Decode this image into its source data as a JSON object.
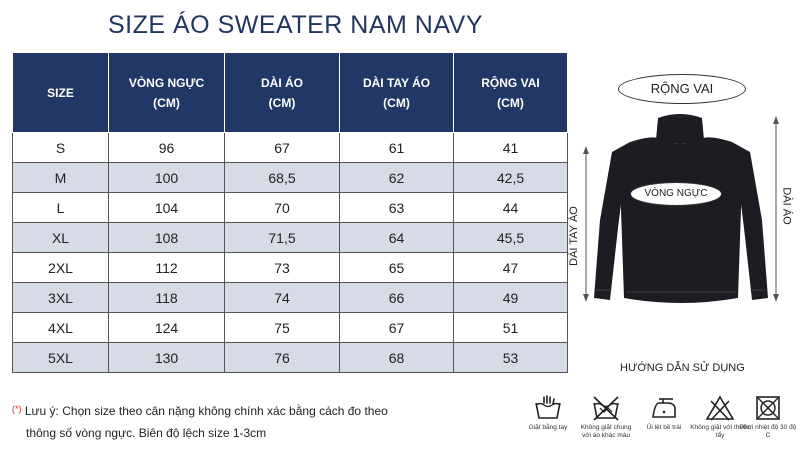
{
  "title": "SIZE ÁO SWEATER NAM NAVY",
  "table": {
    "headers": [
      [
        "SIZE",
        ""
      ],
      [
        "VÒNG NGỰC",
        "(CM)"
      ],
      [
        "DÀI ÁO",
        "(CM)"
      ],
      [
        "DÀI TAY ÁO",
        "(CM)"
      ],
      [
        "RỘNG VAI",
        "(CM)"
      ]
    ],
    "rows": [
      [
        "S",
        "96",
        "67",
        "61",
        "41"
      ],
      [
        "M",
        "100",
        "68,5",
        "62",
        "42,5"
      ],
      [
        "L",
        "104",
        "70",
        "63",
        "44"
      ],
      [
        "XL",
        "108",
        "71,5",
        "64",
        "45,5"
      ],
      [
        "2XL",
        "112",
        "73",
        "65",
        "47"
      ],
      [
        "3XL",
        "118",
        "74",
        "66",
        "49"
      ],
      [
        "4XL",
        "124",
        "75",
        "67",
        "51"
      ],
      [
        "5XL",
        "130",
        "76",
        "68",
        "53"
      ]
    ]
  },
  "diagram": {
    "rong_vai": "RỘNG VAI",
    "vong_nguc": "VÒNG NGỰC",
    "dai_tay_ao": "DÀI TAY ÁO",
    "dai_ao": "DÀI ÁO",
    "garment_color": "#1c1c22"
  },
  "note": {
    "marker": "(*)",
    "line1": "Lưu ý: Chọn size theo cân nặng không chính xác bằng cách đo theo",
    "line2": "thông số vòng ngực. Biên độ lệch size 1-3cm"
  },
  "usage_title": "HƯỚNG DẪN SỬ DỤNG",
  "care": [
    {
      "icon": "hand-wash-icon",
      "caption": "Giặt bằng tay"
    },
    {
      "icon": "no-mixed-wash-icon",
      "caption": "Không giặt chung với áo khác màu"
    },
    {
      "icon": "low-iron-icon",
      "caption": "Ủi lệt bề trái"
    },
    {
      "icon": "no-bleach-icon",
      "caption": "Không giặt với thuốc tẩy"
    },
    {
      "icon": "shade-dry-icon",
      "caption": "Phơi nhiệt độ 30 độ C"
    }
  ]
}
